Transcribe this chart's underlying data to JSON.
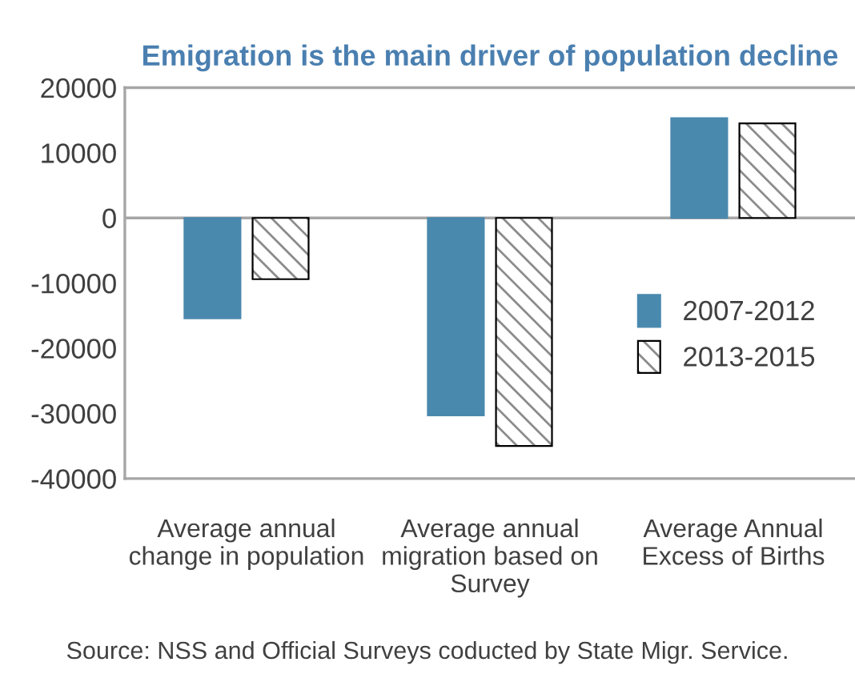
{
  "chart_data": {
    "type": "bar",
    "title": "Emigration is the main driver of population decline",
    "categories": [
      "Average annual\nchange in population",
      "Average annual\nmigration based on\nSurvey",
      "Average Annual\nExcess of Births"
    ],
    "series": [
      {
        "name": "2007-2012",
        "color": "#4a89ae",
        "values": [
          -15400,
          -30300,
          15300
        ]
      },
      {
        "name": "2013-2015",
        "color": "#000000",
        "values": [
          -9400,
          -35000,
          14500
        ]
      }
    ],
    "ylim": [
      -40000,
      20000
    ],
    "yticks": [
      -40000,
      -30000,
      -20000,
      -10000,
      0,
      10000,
      20000
    ],
    "grid": false,
    "ref_lines": [
      {
        "axis": "y",
        "value": 0,
        "color": "#a6a6a6"
      }
    ],
    "legend": "right",
    "annotations": [
      "Source: NSS and Official Surveys coducted by State Migr. Service."
    ]
  }
}
